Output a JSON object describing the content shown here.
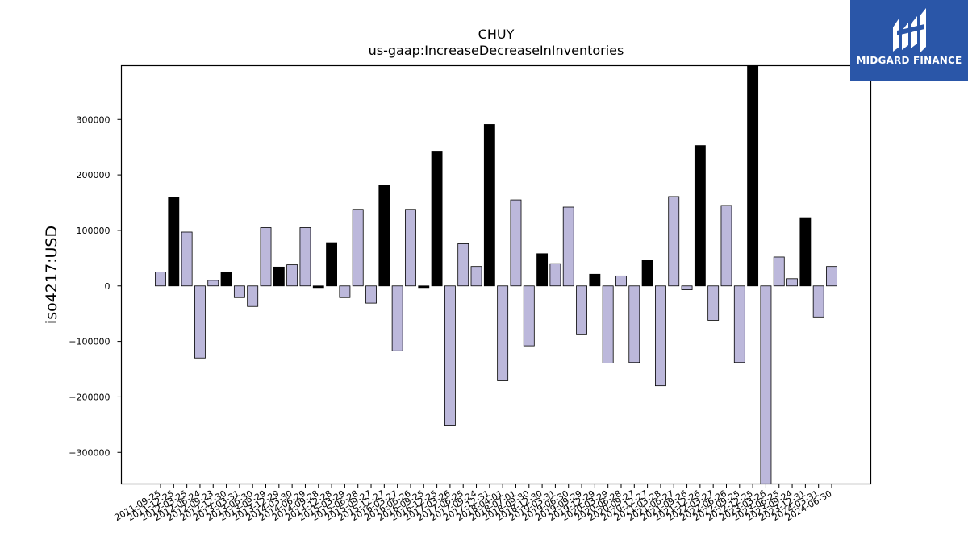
{
  "brand": {
    "name": "MIDGARD FINANCE",
    "logo_color": "#2a56a8"
  },
  "chart_data": {
    "type": "bar",
    "title": "CHUY",
    "subtitle": "us-gaap:IncreaseDecreaseInInventories",
    "ylabel": "iso4217:USD",
    "xlabel": "",
    "ylim": [
      -357000,
      397000
    ],
    "yticks": [
      -300000,
      -200000,
      -100000,
      0,
      100000,
      200000,
      300000
    ],
    "grid": false,
    "colors": {
      "default": "#bcb8db",
      "highlight": "#000000",
      "edge": "#000000"
    },
    "categories": [
      "2011-09-25",
      "2011-12-25",
      "2012-03-25",
      "2012-06-24",
      "2012-09-23",
      "2012-12-30",
      "2013-03-31",
      "2013-06-30",
      "2013-09-29",
      "2013-12-29",
      "2014-03-30",
      "2014-06-29",
      "2014-09-28",
      "2014-12-28",
      "2015-03-29",
      "2015-06-28",
      "2015-09-27",
      "2015-12-27",
      "2016-03-27",
      "2016-06-26",
      "2016-09-25",
      "2016-12-25",
      "2017-03-26",
      "2017-06-25",
      "2017-09-24",
      "2017-12-31",
      "2018-04-01",
      "2018-07-01",
      "2018-09-30",
      "2018-12-30",
      "2019-03-31",
      "2019-06-30",
      "2019-09-29",
      "2019-12-29",
      "2020-03-29",
      "2020-06-28",
      "2020-09-27",
      "2020-12-27",
      "2021-03-28",
      "2021-06-27",
      "2021-09-26",
      "2021-12-26",
      "2022-03-27",
      "2022-06-26",
      "2022-09-25",
      "2022-12-25",
      "2023-03-26",
      "2023-06-25",
      "2023-09-24",
      "2023-12-31",
      "2024-03-31",
      "2024-06-30"
    ],
    "values": [
      25000,
      160000,
      97000,
      -130000,
      10000,
      24000,
      -21000,
      -37000,
      105000,
      34000,
      38000,
      105000,
      -3000,
      78000,
      -21000,
      138000,
      -31000,
      181000,
      -117000,
      138000,
      -3000,
      243000,
      -251000,
      76000,
      35000,
      291000,
      -171000,
      155000,
      -108000,
      58000,
      40000,
      142000,
      -88000,
      21000,
      -139000,
      18000,
      -138000,
      47000,
      -180000,
      161000,
      -7000,
      253000,
      -62000,
      145000,
      -138000,
      397000,
      -357000,
      52000,
      13000,
      123000,
      -56000,
      35000
    ],
    "highlight": [
      false,
      true,
      false,
      false,
      false,
      true,
      false,
      false,
      false,
      true,
      false,
      false,
      true,
      true,
      false,
      false,
      false,
      true,
      false,
      false,
      true,
      true,
      false,
      false,
      false,
      true,
      false,
      false,
      false,
      true,
      false,
      false,
      false,
      true,
      false,
      false,
      false,
      true,
      false,
      false,
      false,
      true,
      false,
      false,
      false,
      true,
      false,
      false,
      false,
      true,
      false,
      false
    ]
  }
}
